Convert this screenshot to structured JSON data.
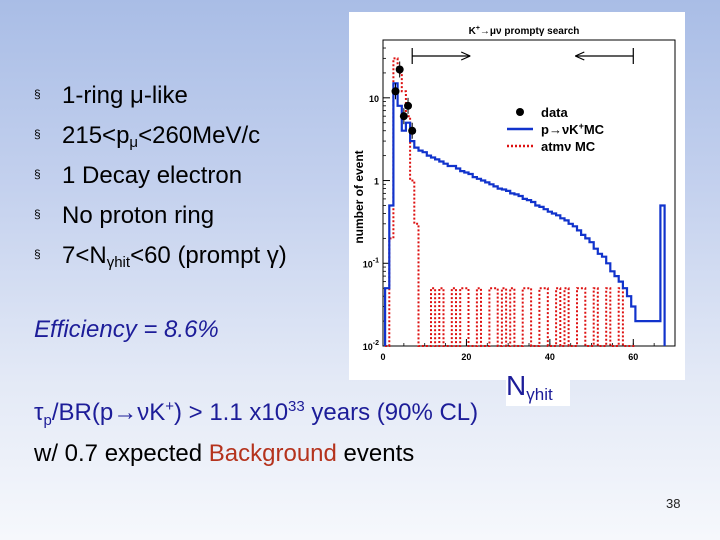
{
  "bullets": {
    "mark": "§",
    "items": [
      {
        "pre": "1-ring ",
        "sym": "μ",
        "post": "-like"
      },
      {
        "pre": "215",
        "op1": "<",
        "p": "p",
        "psub": "μ",
        "op2": "<",
        "post": "260MeV/c"
      },
      {
        "text": "1 Decay electron"
      },
      {
        "text": "No proton ring"
      },
      {
        "pre": "7",
        "op1": "<",
        "N": "N",
        "nsub": "γhit",
        "op2": "<",
        "post": "60 (prompt ",
        "gamma": "γ",
        "close": ")"
      }
    ]
  },
  "efficiency": "Efficiency = 8.6%",
  "chart_data": {
    "type": "bar",
    "title": "K⁺→μν prompt γ search",
    "title_parts": {
      "k": "K",
      "kplus": "+",
      "arrow": "→",
      "rest": "μν prompt",
      "gamma": "γ",
      "tail": " search"
    },
    "xlabel": "Nγhit",
    "xlabel_parts": {
      "N": "N",
      "sub": "γhit"
    },
    "ylabel": "number of event",
    "yscale": "log",
    "ylim": [
      0.01,
      50
    ],
    "xlim": [
      0,
      70
    ],
    "yticks": [
      {
        "base": "10",
        "exp": "-2",
        "v": 0.01
      },
      {
        "base": "10",
        "exp": "-1",
        "v": 0.1
      },
      {
        "base": "1",
        "exp": "",
        "v": 1
      },
      {
        "base": "10",
        "exp": "",
        "v": 10
      }
    ],
    "xticks": [
      {
        "label": "0",
        "v": 0
      },
      {
        "label": "20",
        "v": 20
      },
      {
        "label": "40",
        "v": 40
      },
      {
        "label": "60",
        "v": 60
      }
    ],
    "cut_lo": 7,
    "cut_hi": 60,
    "legend": {
      "position": "top-right",
      "entries": [
        {
          "label": "data",
          "color": "#000000",
          "style": "marker"
        },
        {
          "label": "p→νK⁺MC",
          "color": "#1133cc",
          "style": "solid",
          "parts": {
            "a": "p",
            "arrow": "→",
            "b": "νK",
            "sup": "+",
            "c": "MC"
          }
        },
        {
          "label": "atmν MC",
          "color": "#dd1111",
          "style": "dotted"
        }
      ]
    },
    "series": [
      {
        "name": "atmν MC",
        "color": "#dd1111",
        "style": "dotted",
        "bin_width": 1,
        "x": [
          1,
          2,
          3,
          4,
          5,
          6,
          7,
          8,
          9,
          10,
          11,
          12,
          13,
          14,
          15,
          16,
          17,
          18,
          19,
          20,
          21,
          22,
          23,
          24,
          25,
          26,
          27,
          28,
          29,
          30,
          31,
          32,
          33,
          34,
          35,
          36,
          37,
          38,
          39,
          40,
          41,
          42,
          43,
          44,
          45,
          46,
          47,
          48,
          49,
          50,
          51,
          52,
          53,
          54,
          55,
          56,
          57,
          58,
          59,
          60
        ],
        "values": [
          0.01,
          0.2,
          30,
          20,
          12,
          6,
          1,
          0.3,
          0.01,
          0.01,
          0.01,
          0.05,
          0.01,
          0.05,
          0.01,
          0.01,
          0.05,
          0.01,
          0.05,
          0.05,
          0.01,
          0.01,
          0.05,
          0.01,
          0.01,
          0.05,
          0.05,
          0.01,
          0.05,
          0.01,
          0.05,
          0.01,
          0.01,
          0.05,
          0.05,
          0.01,
          0.01,
          0.05,
          0.05,
          0.01,
          0.01,
          0.05,
          0.01,
          0.05,
          0.01,
          0.01,
          0.05,
          0.05,
          0.01,
          0.01,
          0.05,
          0.01,
          0.01,
          0.05,
          0.01,
          0.01,
          0.05,
          0.01,
          0.01,
          0.01
        ]
      },
      {
        "name": "p→νK⁺MC",
        "color": "#1133cc",
        "style": "solid",
        "bin_width": 1,
        "x": [
          1,
          2,
          3,
          4,
          5,
          6,
          7,
          8,
          9,
          10,
          11,
          12,
          13,
          14,
          15,
          16,
          17,
          18,
          19,
          20,
          21,
          22,
          23,
          24,
          25,
          26,
          27,
          28,
          29,
          30,
          31,
          32,
          33,
          34,
          35,
          36,
          37,
          38,
          39,
          40,
          41,
          42,
          43,
          44,
          45,
          46,
          47,
          48,
          49,
          50,
          51,
          52,
          53,
          54,
          55,
          56,
          57,
          58,
          59,
          60,
          61,
          62,
          63,
          64,
          65,
          66,
          67
        ],
        "values": [
          0.05,
          0.5,
          15,
          8,
          4,
          5,
          3,
          2.5,
          2.3,
          2.2,
          2,
          1.9,
          1.8,
          1.7,
          1.6,
          1.5,
          1.5,
          1.4,
          1.3,
          1.25,
          1.2,
          1.1,
          1.05,
          1.0,
          0.95,
          0.9,
          0.85,
          0.8,
          0.78,
          0.75,
          0.7,
          0.68,
          0.65,
          0.6,
          0.58,
          0.55,
          0.5,
          0.48,
          0.45,
          0.42,
          0.4,
          0.38,
          0.35,
          0.33,
          0.3,
          0.28,
          0.25,
          0.22,
          0.2,
          0.18,
          0.15,
          0.13,
          0.12,
          0.1,
          0.08,
          0.07,
          0.06,
          0.05,
          0.04,
          0.03,
          0.02,
          0.02,
          0.02,
          0.02,
          0.02,
          0.02,
          0.5
        ]
      },
      {
        "name": "data",
        "color": "#000000",
        "style": "marker",
        "x": [
          3,
          4,
          5,
          6,
          7
        ],
        "values": [
          12,
          22,
          6,
          8,
          4
        ]
      }
    ]
  },
  "lifetime": {
    "tau": "τ",
    "tau_sub": "p",
    "rest1": "/BR(p",
    "arrow": "→",
    "rest2": "νK",
    "kplus": "+",
    "rest3": ")  > 1.1 x10",
    "exp": "33",
    "rest4": " years (90% CL)"
  },
  "background": {
    "pre": "w/ 0.7 expected ",
    "highlight": "Background",
    "post": " events"
  },
  "page_number": "38"
}
